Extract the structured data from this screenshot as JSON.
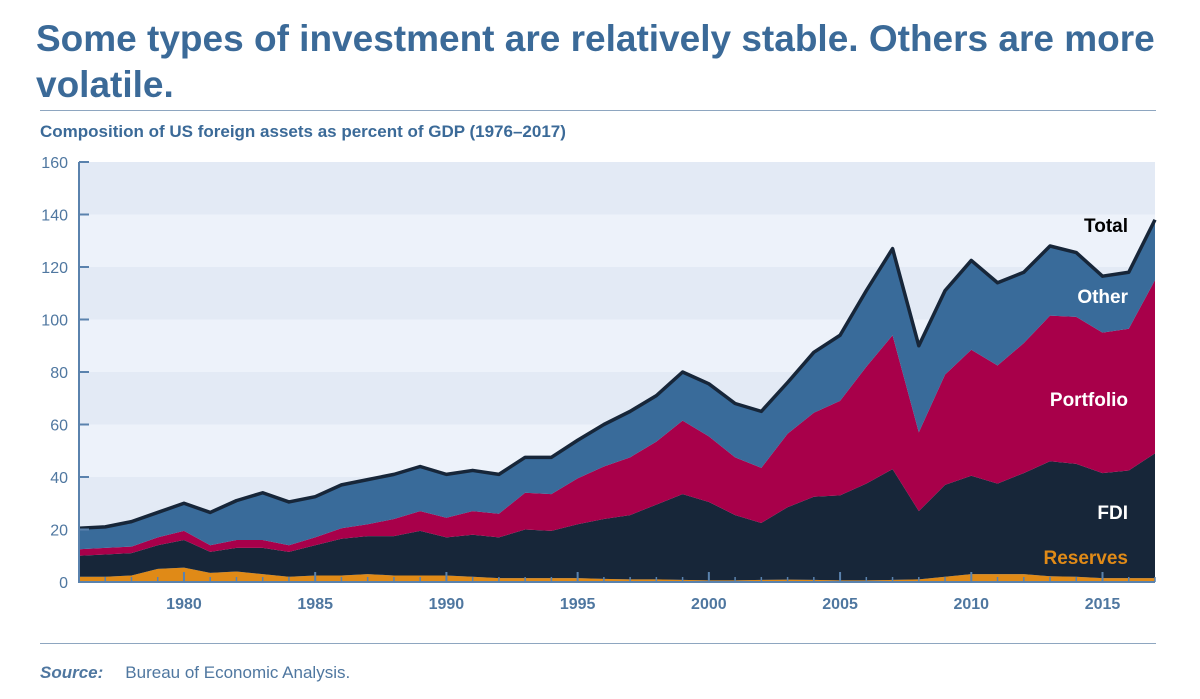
{
  "title": "Some types of investment are relatively stable. Others are more volatile.",
  "subtitle": "Composition of US foreign assets as percent of GDP (1976–2017)",
  "source_label": "Source:",
  "source_text": "Bureau of Economic Analysis.",
  "chart_data": {
    "type": "area",
    "stacked": true,
    "title": "Composition of US foreign assets as percent of GDP (1976–2017)",
    "xlim": [
      1976,
      2017
    ],
    "ylim": [
      0,
      160
    ],
    "yticks": [
      0,
      20,
      40,
      60,
      80,
      100,
      120,
      140,
      160
    ],
    "xticks": [
      1980,
      1985,
      1990,
      1995,
      2000,
      2005,
      2010,
      2015
    ],
    "grid": "alternating horizontal bands",
    "x": [
      1976,
      1977,
      1978,
      1979,
      1980,
      1981,
      1982,
      1983,
      1984,
      1985,
      1986,
      1987,
      1988,
      1989,
      1990,
      1991,
      1992,
      1993,
      1994,
      1995,
      1996,
      1997,
      1998,
      1999,
      2000,
      2001,
      2002,
      2003,
      2004,
      2005,
      2006,
      2007,
      2008,
      2009,
      2010,
      2011,
      2012,
      2013,
      2014,
      2015,
      2016,
      2017
    ],
    "series": [
      {
        "name": "Reserves",
        "color": "#e08a17",
        "values": [
          2,
          2,
          2.5,
          5,
          5.5,
          3.5,
          4,
          3,
          2,
          2.5,
          2.5,
          3,
          2.5,
          2.5,
          2.5,
          2,
          1.5,
          1.5,
          1.5,
          1.5,
          1.2,
          1,
          1,
          0.8,
          0.6,
          0.6,
          0.8,
          0.9,
          0.8,
          0.6,
          0.6,
          0.8,
          1,
          2,
          3,
          3,
          3,
          2.2,
          2,
          1.5,
          1.5,
          1.5
        ]
      },
      {
        "name": "FDI",
        "color": "#172639",
        "values": [
          8,
          8.5,
          8.5,
          9,
          10.5,
          8,
          9,
          10,
          9.5,
          11.5,
          14,
          14.5,
          15,
          17,
          14.5,
          16,
          15.5,
          18.5,
          18,
          20.5,
          22.8,
          24.5,
          28.5,
          32.7,
          29.9,
          24.9,
          21.7,
          27.6,
          31.7,
          32.4,
          36.9,
          42.2,
          26,
          35,
          37.5,
          34.5,
          38.5,
          43.8,
          43,
          40,
          41,
          47.5
        ]
      },
      {
        "name": "Portfolio",
        "color": "#a8004a",
        "values": [
          2.5,
          2.5,
          2.5,
          3,
          3.5,
          2.5,
          3,
          3,
          2.5,
          3,
          4,
          4.5,
          6.5,
          7.5,
          7.5,
          9,
          9,
          14,
          14,
          17.5,
          20,
          22,
          24,
          28,
          25,
          22,
          21,
          28,
          32,
          36,
          44.5,
          51,
          30,
          42,
          48,
          45,
          49.5,
          55.5,
          56,
          53.5,
          54,
          66
        ]
      },
      {
        "name": "Other",
        "color": "#396b9a",
        "values": [
          8,
          8,
          9.5,
          9.5,
          10.5,
          12.5,
          15,
          18,
          16.5,
          15.5,
          16.5,
          17,
          17,
          17,
          16.5,
          15.5,
          15,
          13.5,
          14,
          14.5,
          16,
          17.5,
          17.5,
          18.5,
          20,
          20.5,
          21.5,
          19.5,
          23,
          25,
          29,
          33,
          33,
          32,
          34,
          31.5,
          27,
          26.5,
          24.5,
          21.5,
          21.5,
          23
        ]
      }
    ],
    "total_label": "Total",
    "total_color": "#172639",
    "labels": {
      "total": "Total",
      "other": "Other",
      "portfolio": "Portfolio",
      "fdi": "FDI",
      "reserves": "Reserves"
    }
  }
}
